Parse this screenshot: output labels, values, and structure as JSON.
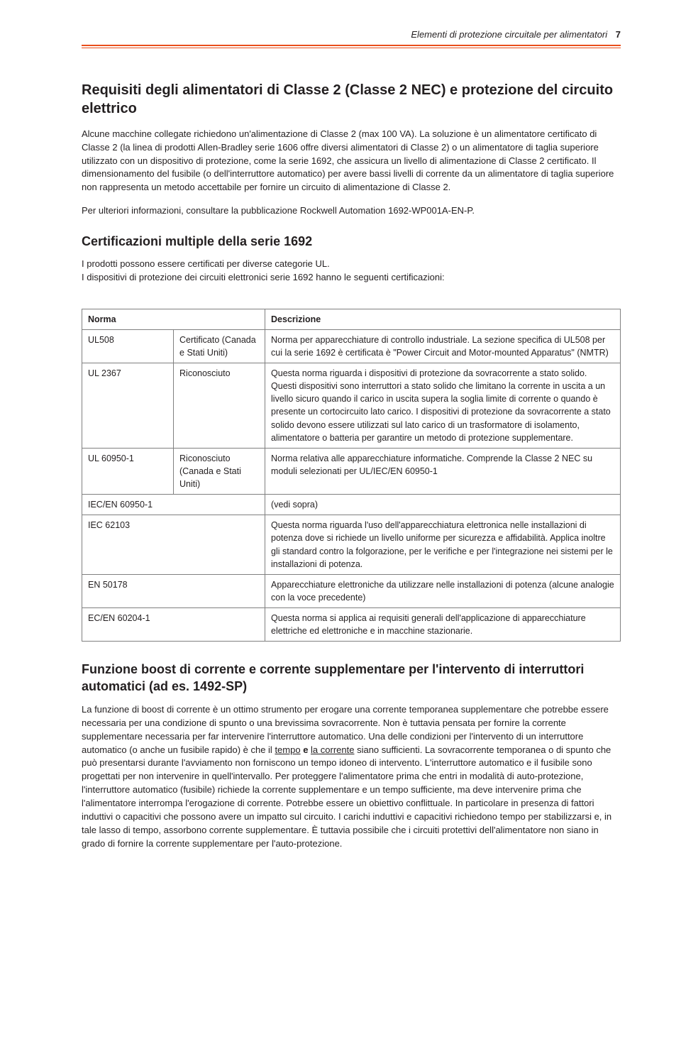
{
  "header": {
    "title": "Elementi di protezione circuitale per alimentatori",
    "page_number": "7"
  },
  "section1": {
    "heading": "Requisiti degli alimentatori di Classe 2 (Classe 2 NEC) e protezione del circuito elettrico",
    "para1": "Alcune macchine collegate richiedono un'alimentazione di Classe 2 (max 100 VA). La soluzione è un alimentatore certificato di Classe 2 (la linea di prodotti Allen-Bradley serie 1606 offre diversi alimentatori di Classe 2) o un alimentatore di taglia superiore utilizzato con un dispositivo di protezione, come la serie 1692, che assicura un livello di alimentazione di Classe 2 certificato. Il dimensionamento del fusibile (o dell'interruttore automatico) per avere bassi livelli di corrente da un alimentatore di taglia superiore non rappresenta un metodo accettabile per fornire un circuito di alimentazione di Classe 2.",
    "para2": "Per ulteriori informazioni, consultare la pubblicazione Rockwell Automation 1692-WP001A-EN-P."
  },
  "section2": {
    "heading": "Certificazioni multiple della serie 1692",
    "intro1": "I prodotti possono essere certificati per diverse categorie UL.",
    "intro2": "I dispositivi di protezione dei circuiti elettronici serie 1692 hanno le seguenti certificazioni:"
  },
  "table": {
    "head_norma": "Norma",
    "head_desc": "Descrizione",
    "rows": [
      {
        "norma": "UL508",
        "status": "Certificato (Canada e Stati Uniti)",
        "desc": "Norma per apparecchiature di controllo industriale. La sezione specifica di UL508 per cui la serie 1692 è certificata è \"Power Circuit and Motor-mounted Apparatus\" (NMTR)"
      },
      {
        "norma": "UL 2367",
        "status": "Riconosciuto",
        "desc": "Questa norma riguarda i dispositivi di protezione da sovracorrente a stato solido. Questi dispositivi sono interruttori a stato solido che limitano la corrente in uscita a un livello sicuro quando il carico in uscita supera la soglia limite di corrente o quando è presente un cortocircuito lato carico. I dispositivi di protezione da sovracorrente a stato solido devono essere utilizzati sul lato carico di un trasformatore di isolamento, alimentatore o batteria per garantire un metodo di protezione supplementare."
      },
      {
        "norma": "UL 60950-1",
        "status": "Riconosciuto (Canada e Stati Uniti)",
        "desc": "Norma relativa alle apparecchiature informatiche. Comprende la Classe 2 NEC su moduli selezionati per UL/IEC/EN 60950-1"
      },
      {
        "norma": "IEC/EN 60950-1",
        "status": "",
        "desc": "(vedi sopra)"
      },
      {
        "norma": "IEC 62103",
        "status": "",
        "desc": "Questa norma riguarda l'uso dell'apparecchiatura elettronica nelle installazioni di potenza dove si richiede un livello uniforme per sicurezza e affidabilità. Applica inoltre gli standard contro la folgorazione, per le verifiche e per l'integrazione nei sistemi per le installazioni di potenza."
      },
      {
        "norma": "EN 50178",
        "status": "",
        "desc": "Apparecchiature elettroniche da utilizzare nelle installazioni di potenza (alcune analogie con la voce precedente)"
      },
      {
        "norma": "EC/EN 60204-1",
        "status": "",
        "desc": "Questa norma si applica ai requisiti generali dell'applicazione di apparecchiature elettriche ed elettroniche e in macchine stazionarie."
      }
    ]
  },
  "section3": {
    "heading": "Funzione boost di corrente e corrente supplementare per l'intervento di interruttori automatici (ad es. 1492-SP)",
    "para_pre": "La funzione di boost di corrente è un ottimo strumento per erogare una corrente temporanea supplementare che potrebbe essere necessaria per una condizione di spunto o una brevissima sovracorrente. Non è tuttavia pensata per fornire la corrente supplementare necessaria per far intervenire l'interruttore automatico. Una delle condizioni per l'intervento di un interruttore automatico (o anche un fusibile rapido) è che il ",
    "u_tempo": "tempo",
    "bold_e": " e ",
    "u_corrente": "la corrente",
    "para_post": " siano sufficienti. La sovracorrente temporanea o di spunto che può presentarsi durante l'avviamento non forniscono un tempo idoneo di intervento. L'interruttore automatico e il fusibile sono progettati per non intervenire in quell'intervallo. Per proteggere l'alimentatore prima che entri in modalità di auto-protezione, l'interruttore automatico (fusibile) richiede la corrente supplementare e un tempo sufficiente, ma deve intervenire prima che l'alimentatore interrompa l'erogazione di corrente. Potrebbe essere un obiettivo conflittuale. In particolare in presenza di fattori induttivi o capacitivi che possono avere un impatto sul circuito. I carichi induttivi e capacitivi richiedono tempo per stabilizzarsi e, in tale lasso di tempo, assorbono corrente supplementare. È tuttavia possibile che i circuiti protettivi dell'alimentatore non siano in grado di fornire la corrente supplementare per l'auto-protezione."
  }
}
